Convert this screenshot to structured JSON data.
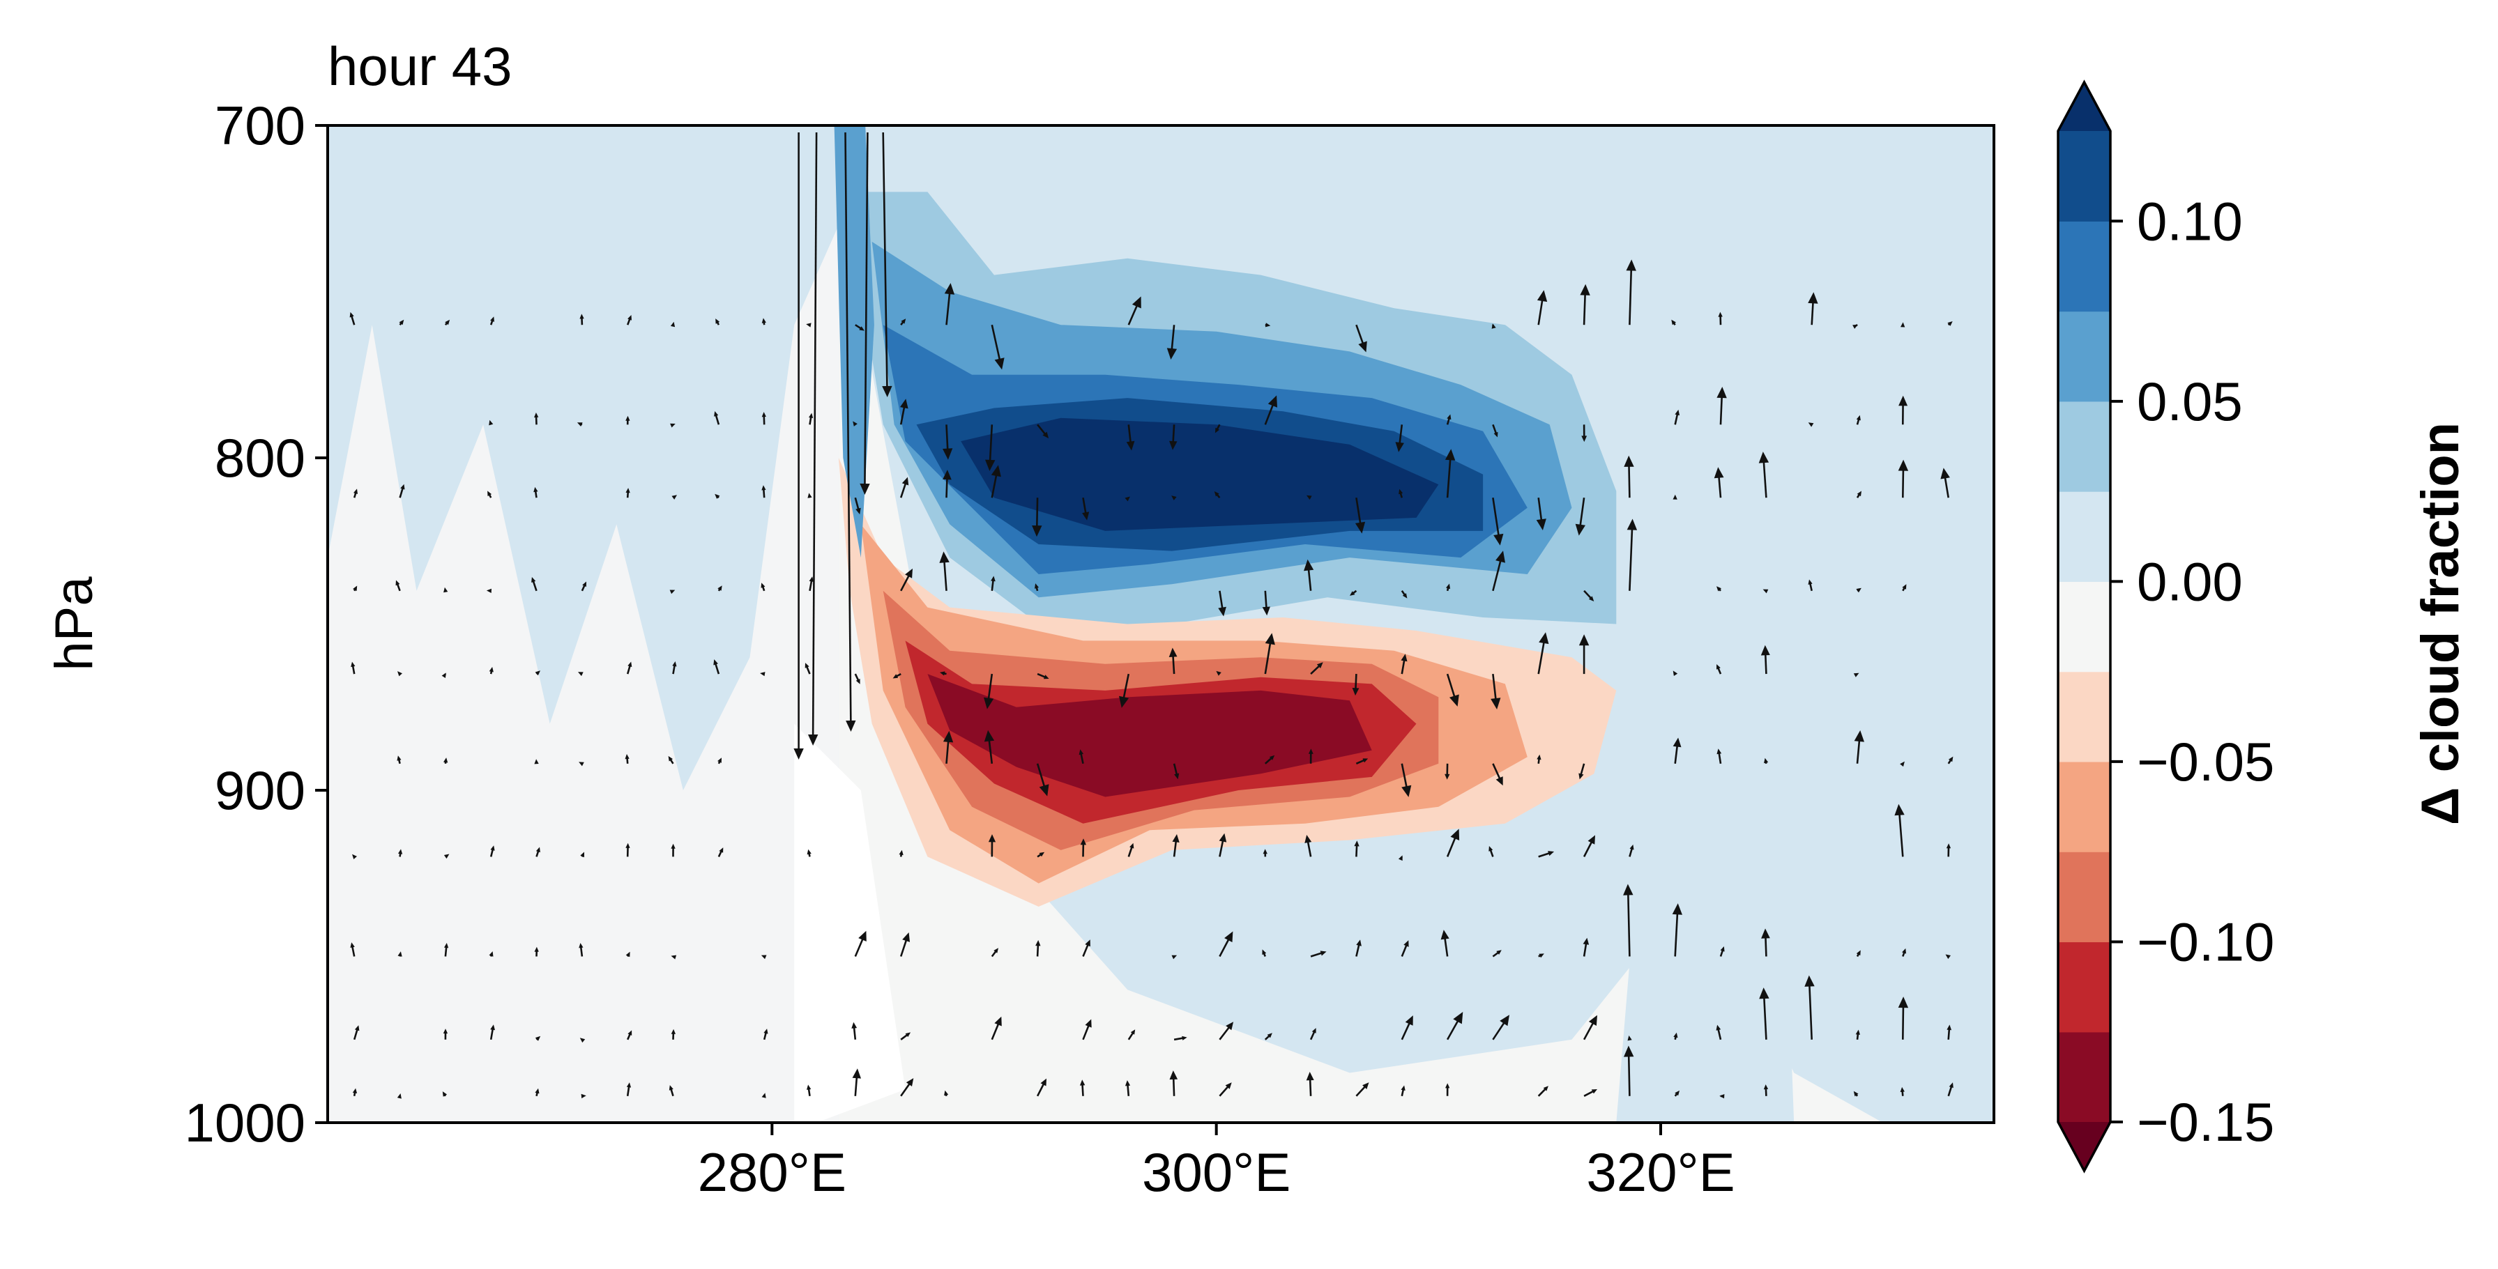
{
  "chart_data": {
    "type": "heatmap",
    "title": "hour 43",
    "xlabel": "",
    "ylabel": "hPa",
    "colorbar_label": "Δ cloud fraction",
    "x_unit_label": "°E",
    "xlim": [
      260,
      335
    ],
    "ylim": [
      1000,
      700
    ],
    "y_inverted": true,
    "xticks": [
      280,
      300,
      320
    ],
    "xtick_labels": [
      "280°E",
      "300°E",
      "320°E"
    ],
    "yticks": [
      700,
      800,
      900,
      1000
    ],
    "ytick_labels": [
      "700",
      "800",
      "900",
      "1000"
    ],
    "colorbar_levels": [
      -0.15,
      -0.125,
      -0.1,
      -0.075,
      -0.05,
      -0.025,
      0.0,
      0.025,
      0.05,
      0.075,
      0.1,
      0.125
    ],
    "colorbar_ticks": [
      0.1,
      0.05,
      0.0,
      -0.05,
      -0.1,
      -0.15
    ],
    "colorbar_tick_labels": [
      "0.10",
      "0.05",
      "0.00",
      "−0.05",
      "−0.10",
      "−0.15"
    ],
    "colorbar_extend": "both",
    "colormap": "RdBu",
    "colors": [
      "#67001f",
      "#8a0b25",
      "#c1272d",
      "#e0745b",
      "#f4a582",
      "#fbd7c4",
      "#f5f6f5",
      "#d4e6f1",
      "#9ecae1",
      "#5aa0cf",
      "#2c75b7",
      "#114d8c",
      "#08306b"
    ],
    "background_value": 0.0,
    "features": [
      {
        "name": "positive anomaly band",
        "value": 0.13,
        "x_range": [
          289,
          316
        ],
        "p_range": [
          780,
          840
        ]
      },
      {
        "name": "negative anomaly band",
        "value": -0.15,
        "x_range": [
          286,
          309
        ],
        "p_range": [
          855,
          915
        ]
      },
      {
        "name": "plume boundary",
        "x": 283,
        "p_range": [
          700,
          1000
        ]
      }
    ],
    "vectors": "wind arrows (u, omega) overlaid on pressure–longitude cross-section",
    "grid": false,
    "legend": "colorbar-right"
  }
}
